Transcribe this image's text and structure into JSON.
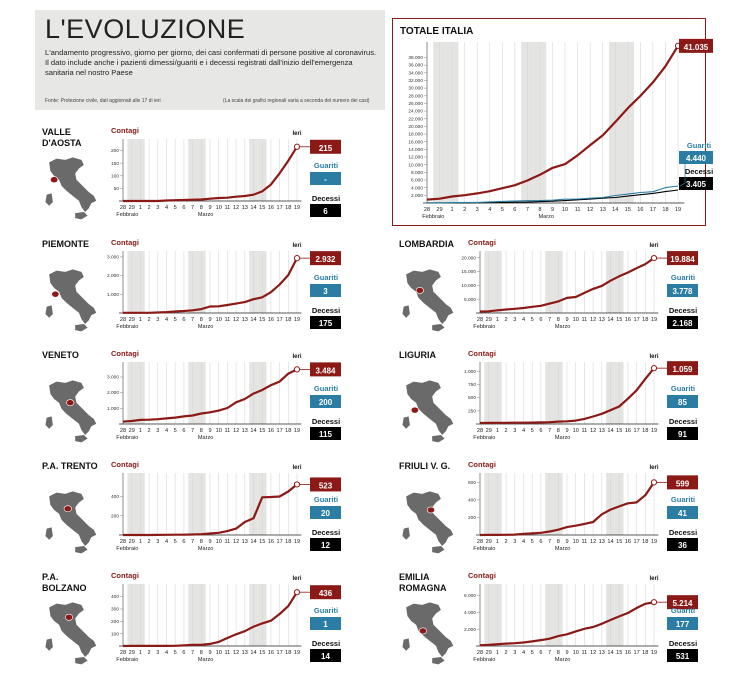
{
  "header": {
    "title": "L'EVOLUZIONE",
    "description": "L'andamento progressivo, giorno per giorno, dei casi confermati di persone positive al coronavirus. Il dato include anche i pazienti dimessi/guariti e i decessi registrati dall'inizio dell'emergenza sanitaria nel nostro Paese",
    "source": "Fonte: Protezione civile, dati aggiornati alle 17 di ieri",
    "scale_note": "(La scala dei grafici regionali varia a seconda del numero dei casi)"
  },
  "labels": {
    "contagi": "Contagi",
    "guariti": "Guariti",
    "decessi": "Decessi",
    "ieri": "Ieri",
    "febbraio": "Febbraio",
    "marzo": "Marzo"
  },
  "colors": {
    "contagi": "#8b1a16",
    "guariti": "#2b7da3",
    "decessi": "#000000",
    "weekend_band": "#e4e4e2",
    "map": "#6a6a6a"
  },
  "x_ticks": [
    "28",
    "29",
    "1",
    "2",
    "3",
    "4",
    "5",
    "6",
    "7",
    "8",
    "9",
    "10",
    "11",
    "12",
    "13",
    "14",
    "15",
    "16",
    "17",
    "18",
    "19"
  ],
  "totale": {
    "region": "TOTALE ITALIA",
    "contagi_label": "41.035",
    "guariti_label": "4.440",
    "decessi_label": "3.405"
  },
  "regions": [
    {
      "key": "valle",
      "name": "VALLE D'AOSTA",
      "contagi": "215",
      "guariti": "-",
      "decessi": "6"
    },
    {
      "key": "piemonte",
      "name": "PIEMONTE",
      "contagi": "2.932",
      "guariti": "3",
      "decessi": "175"
    },
    {
      "key": "lombardia",
      "name": "LOMBARDIA",
      "contagi": "19.884",
      "guariti": "3.778",
      "decessi": "2.168"
    },
    {
      "key": "veneto",
      "name": "VENETO",
      "contagi": "3.484",
      "guariti": "200",
      "decessi": "115"
    },
    {
      "key": "liguria",
      "name": "LIGURIA",
      "contagi": "1.059",
      "guariti": "85",
      "decessi": "91"
    },
    {
      "key": "trento",
      "name": "P.A. TRENTO",
      "contagi": "523",
      "guariti": "20",
      "decessi": "12"
    },
    {
      "key": "friuli",
      "name": "FRIULI V. G.",
      "contagi": "599",
      "guariti": "41",
      "decessi": "36"
    },
    {
      "key": "bolzano",
      "name": "P.A. BOLZANO",
      "contagi": "436",
      "guariti": "1",
      "decessi": "14"
    },
    {
      "key": "emilia",
      "name": "EMILIA ROMAGNA",
      "contagi": "5.214",
      "guariti": "177",
      "decessi": "531"
    }
  ],
  "chart_data": [
    {
      "type": "line",
      "title": "TOTALE ITALIA",
      "x": [
        "28",
        "29",
        "1",
        "2",
        "3",
        "4",
        "5",
        "6",
        "7",
        "8",
        "9",
        "10",
        "11",
        "12",
        "13",
        "14",
        "15",
        "16",
        "17",
        "18",
        "19"
      ],
      "xgroups": [
        "Febbraio",
        "Marzo"
      ],
      "ylim": [
        0,
        41000
      ],
      "yticks": [
        "2.000",
        "4.000",
        "6.000",
        "8.000",
        "10.000",
        "12.000",
        "14.000",
        "16.000",
        "18.000",
        "20.000",
        "22.000",
        "24.000",
        "26.000",
        "28.000",
        "30.000",
        "32.000",
        "34.000",
        "36.000",
        "38.000"
      ],
      "series": [
        {
          "name": "Contagi",
          "values": [
            888,
            1128,
            1694,
            2036,
            2502,
            3089,
            3858,
            4636,
            5883,
            7375,
            9172,
            10149,
            12462,
            15113,
            17660,
            21157,
            24747,
            27980,
            31506,
            35713,
            41035
          ]
        },
        {
          "name": "Guariti",
          "values": [
            46,
            50,
            83,
            149,
            160,
            276,
            414,
            523,
            589,
            622,
            724,
            1004,
            1045,
            1258,
            1439,
            1966,
            2335,
            2749,
            2941,
            4025,
            4440
          ]
        },
        {
          "name": "Decessi",
          "values": [
            21,
            29,
            34,
            52,
            79,
            107,
            148,
            197,
            233,
            366,
            463,
            631,
            827,
            1016,
            1266,
            1441,
            1809,
            2158,
            2503,
            2978,
            3405
          ]
        }
      ]
    },
    {
      "type": "line",
      "title": "VALLE D'AOSTA",
      "ylim": [
        0,
        230
      ],
      "yticks": [
        "50",
        "100",
        "150",
        "200"
      ],
      "series": [
        {
          "name": "Contagi",
          "values": [
            0,
            0,
            0,
            0,
            0,
            2,
            3,
            4,
            5,
            6,
            9,
            12,
            13,
            17,
            20,
            25,
            38,
            65,
            110,
            160,
            215
          ]
        }
      ]
    },
    {
      "type": "line",
      "title": "PIEMONTE",
      "ylim": [
        0,
        3100
      ],
      "yticks": [
        "1.000",
        "2.000",
        "3.000"
      ],
      "series": [
        {
          "name": "Contagi",
          "values": [
            11,
            11,
            11,
            13,
            28,
            49,
            82,
            108,
            144,
            207,
            350,
            360,
            430,
            501,
            580,
            735,
            840,
            1111,
            1516,
            2032,
            2932
          ]
        }
      ]
    },
    {
      "type": "line",
      "title": "LOMBARDIA",
      "ylim": [
        0,
        21000
      ],
      "yticks": [
        "5.000",
        "10.000",
        "15.000",
        "20.000"
      ],
      "series": [
        {
          "name": "Contagi",
          "values": [
            531,
            615,
            984,
            1254,
            1520,
            1820,
            2251,
            2612,
            3420,
            4189,
            5469,
            5791,
            7280,
            8725,
            9820,
            11685,
            13272,
            14649,
            16220,
            17713,
            19884
          ]
        }
      ]
    },
    {
      "type": "line",
      "title": "VENETO",
      "ylim": [
        0,
        3700
      ],
      "yticks": [
        "1.000",
        "2.000",
        "3.000"
      ],
      "series": [
        {
          "name": "Contagi",
          "values": [
            151,
            191,
            263,
            273,
            307,
            360,
            407,
            488,
            543,
            670,
            744,
            856,
            1023,
            1384,
            1595,
            1937,
            2172,
            2473,
            2704,
            3214,
            3484
          ]
        }
      ]
    },
    {
      "type": "line",
      "title": "LIGURIA",
      "ylim": [
        0,
        1100
      ],
      "yticks": [
        "250",
        "500",
        "750",
        "1.000"
      ],
      "series": [
        {
          "name": "Contagi",
          "values": [
            19,
            21,
            22,
            22,
            25,
            25,
            26,
            30,
            34,
            45,
            52,
            65,
            97,
            142,
            194,
            262,
            331,
            480,
            639,
            855,
            1059
          ]
        }
      ]
    },
    {
      "type": "line",
      "title": "P.A. TRENTO",
      "ylim": [
        0,
        600
      ],
      "yticks": [
        "200",
        "400"
      ],
      "series": [
        {
          "name": "Contagi",
          "values": [
            0,
            0,
            0,
            0,
            1,
            2,
            3,
            3,
            5,
            8,
            15,
            23,
            40,
            66,
            134,
            173,
            390,
            393,
            398,
            450,
            523
          ]
        }
      ]
    },
    {
      "type": "line",
      "title": "FRIULI V. G.",
      "ylim": [
        0,
        660
      ],
      "yticks": [
        "200",
        "400",
        "600"
      ],
      "series": [
        {
          "name": "Contagi",
          "values": [
            0,
            1,
            1,
            2,
            5,
            13,
            18,
            25,
            40,
            60,
            90,
            106,
            126,
            148,
            236,
            289,
            326,
            361,
            371,
            453,
            599
          ]
        }
      ]
    },
    {
      "type": "line",
      "title": "P.A. BOLZANO",
      "ylim": [
        0,
        470
      ],
      "yticks": [
        "100",
        "200",
        "300",
        "400"
      ],
      "series": [
        {
          "name": "Contagi",
          "values": [
            0,
            1,
            1,
            1,
            1,
            1,
            2,
            5,
            9,
            10,
            17,
            33,
            65,
            95,
            120,
            156,
            183,
            205,
            259,
            323,
            436
          ]
        }
      ]
    },
    {
      "type": "line",
      "title": "EMILIA ROMAGNA",
      "ylim": [
        0,
        6900
      ],
      "yticks": [
        "2.000",
        "4.000",
        "6.000"
      ],
      "series": [
        {
          "name": "Contagi",
          "values": [
            97,
            145,
            217,
            285,
            335,
            420,
            544,
            698,
            870,
            1180,
            1386,
            1739,
            2050,
            2263,
            2644,
            3093,
            3522,
            3931,
            4525,
            5015,
            5214
          ]
        }
      ]
    }
  ]
}
